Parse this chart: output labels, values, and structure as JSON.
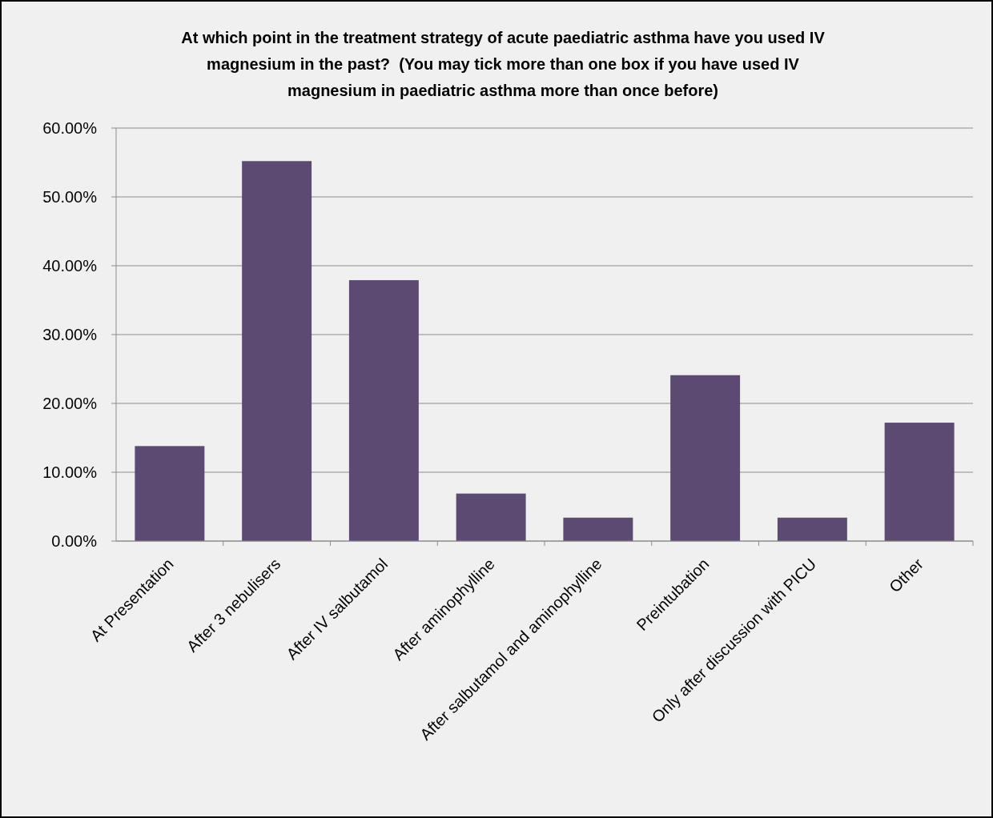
{
  "chart_data": {
    "type": "bar",
    "title": "At which point in the treatment strategy of acute paediatric asthma have you used IV magnesium in the past?  (You may tick more than one box if you have used IV magnesium in paediatric asthma more than once before)",
    "categories": [
      "At Presentation",
      "After 3 nebulisers",
      "After IV salbutamol",
      "After aminophylline",
      "After salbutamol and aminophylline",
      "Preintubation",
      "Only after discussion with PICU",
      "Other"
    ],
    "values": [
      13.8,
      55.2,
      37.9,
      6.9,
      3.4,
      24.1,
      3.4,
      17.2
    ],
    "color": "#5c4a72",
    "ylim": [
      0,
      60
    ],
    "yticks": [
      {
        "value": 0,
        "label": "0.00%"
      },
      {
        "value": 10,
        "label": "10.00%"
      },
      {
        "value": 20,
        "label": "20.00%"
      },
      {
        "value": 30,
        "label": "30.00%"
      },
      {
        "value": 40,
        "label": "40.00%"
      },
      {
        "value": 50,
        "label": "50.00%"
      },
      {
        "value": 60,
        "label": "60.00%"
      }
    ],
    "grid": "y"
  }
}
